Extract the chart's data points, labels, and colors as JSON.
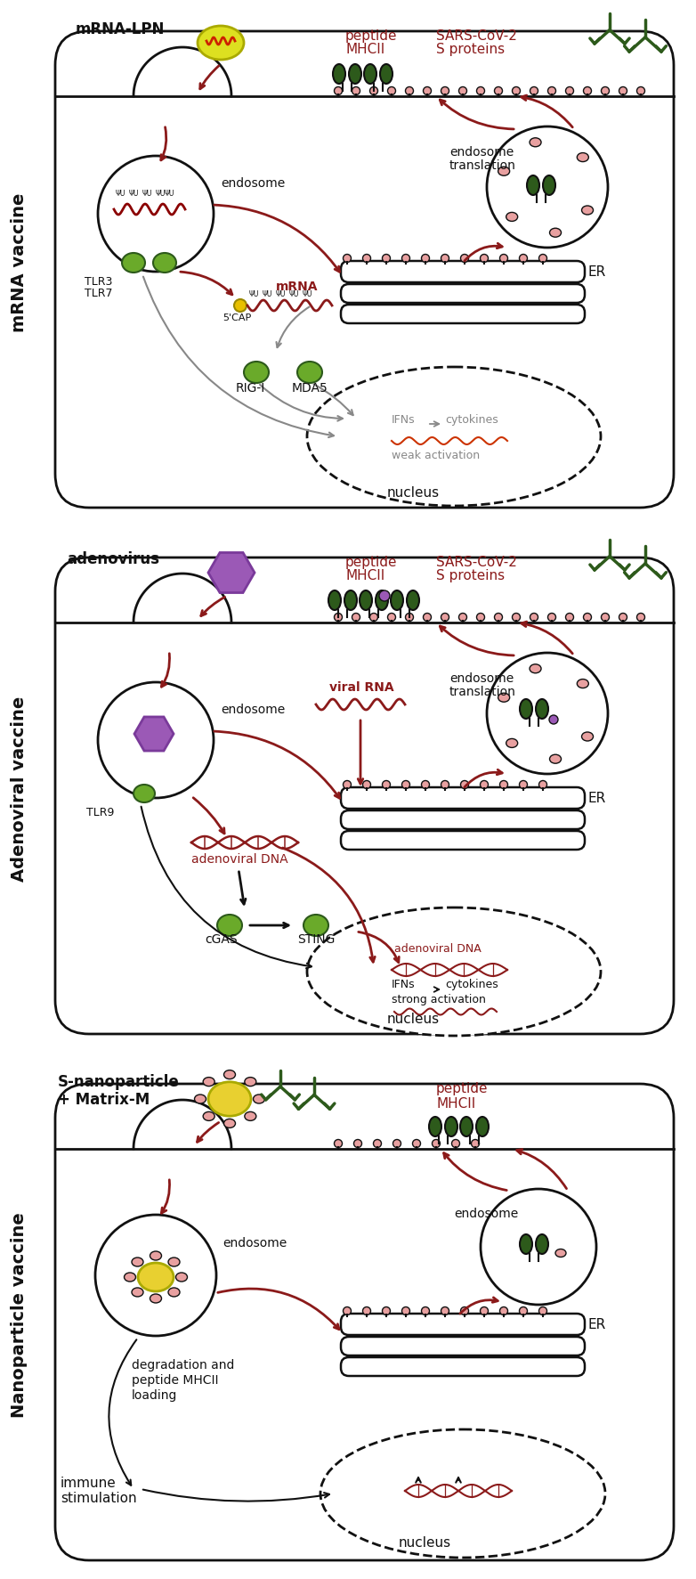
{
  "fig_width": 7.82,
  "fig_height": 17.73,
  "dark_red": "#8B1A1A",
  "dark_green": "#2d5a1b",
  "light_green": "#6aaa2a",
  "purple": "#9b59b6",
  "pink": "#e8a0a0",
  "gray": "#888888",
  "black": "#111111",
  "panel1_label": "mRNA vaccine",
  "panel2_label": "Adenoviral vaccine",
  "panel3_label": "Nanoparticle vaccine"
}
